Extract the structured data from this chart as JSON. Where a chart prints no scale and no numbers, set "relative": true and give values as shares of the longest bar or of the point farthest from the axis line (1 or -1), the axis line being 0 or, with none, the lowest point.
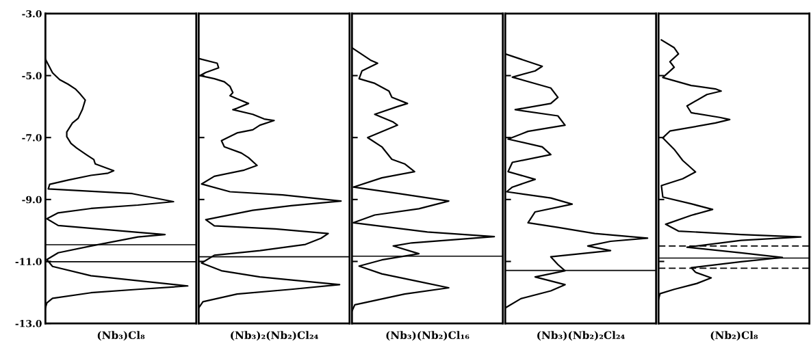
{
  "chart_data": [
    {
      "type": "line",
      "orientation": "horizontal",
      "relative": true,
      "xlabel": "(Nb₃)Cl₈",
      "ylim": [
        -13,
        -3
      ],
      "tick_labels": "y",
      "yticks": [
        {
          "value": -3,
          "label": "-3.0"
        },
        {
          "value": -5,
          "label": "-5.0"
        },
        {
          "value": -7,
          "label": "-7.0"
        },
        {
          "value": -9,
          "label": "-9.0"
        },
        {
          "value": -11,
          "label": "-11.0"
        },
        {
          "value": -13,
          "label": "-13.0"
        }
      ],
      "series": [
        {
          "color": "#000000",
          "values": [
            0,
            0.05,
            0.1,
            0.16,
            0.21,
            0.24,
            0.28,
            0.26,
            0.23,
            0.19,
            0.15,
            0.15,
            0.18,
            0.22,
            0.29,
            0.34,
            0.35,
            0.48,
            0.44,
            0.32,
            0.16,
            0.03,
            0.02,
            0.61,
            0.9,
            0.65,
            0.32,
            0.09,
            0.01,
            0.09,
            0.65,
            0.84,
            0.65,
            0.32,
            0.09,
            0.01,
            0.05,
            0.32,
            1,
            0.65,
            0.32,
            0.05,
            0.01,
            0
          ],
          "x": [
            -4.47,
            -4.91,
            -5.13,
            -5.28,
            -5.43,
            -5.57,
            -5.79,
            -6.09,
            -6.38,
            -6.53,
            -6.82,
            -6.97,
            -7.19,
            -7.34,
            -7.56,
            -7.71,
            -7.85,
            -8.07,
            -8.15,
            -8.22,
            -8.37,
            -8.51,
            -8.66,
            -8.81,
            -9.07,
            -9.18,
            -9.29,
            -9.43,
            -9.62,
            -9.84,
            -10.06,
            -10.13,
            -10.21,
            -10.5,
            -10.72,
            -10.94,
            -11.16,
            -11.46,
            -11.79,
            -11.9,
            -12.01,
            -12.19,
            -12.34,
            -12.5
          ]
        }
      ],
      "ref_lines": [
        {
          "axis": "y",
          "value": -10.46,
          "color": "#000000",
          "line_style": "solid"
        },
        {
          "axis": "y",
          "value": -11.01,
          "color": "#000000",
          "line_style": "solid"
        }
      ]
    },
    {
      "type": "line",
      "orientation": "horizontal",
      "relative": true,
      "xlabel": "(Nb₃)₂(Nb₂)Cl₂₄",
      "ylim": [
        -13,
        -3
      ],
      "tick_labels": false,
      "yticks": [
        {
          "value": -5,
          "label": null
        },
        {
          "value": -7,
          "label": null
        },
        {
          "value": -9,
          "label": null
        },
        {
          "value": -11,
          "label": null
        }
      ],
      "series": [
        {
          "color": "#000000",
          "values": [
            0,
            0.13,
            0.14,
            0.05,
            0.01,
            0.11,
            0.18,
            0.22,
            0.24,
            0.22,
            0.27,
            0.35,
            0.27,
            0.24,
            0.38,
            0.46,
            0.53,
            0.43,
            0.38,
            0.27,
            0.16,
            0.18,
            0.3,
            0.35,
            0.41,
            0.32,
            0.11,
            0.02,
            0.22,
            0.59,
            1,
            0.65,
            0.38,
            0.05,
            0.11,
            0.54,
            0.91,
            0.86,
            0.75,
            0.43,
            0.11,
            0.02,
            0.16,
            0.43,
            0.99,
            0.65,
            0.27,
            0.03,
            0
          ],
          "x": [
            -4.45,
            -4.6,
            -4.75,
            -4.9,
            -5.0,
            -5.1,
            -5.2,
            -5.35,
            -5.55,
            -5.65,
            -5.75,
            -5.9,
            -6.05,
            -6.1,
            -6.25,
            -6.4,
            -6.45,
            -6.6,
            -6.75,
            -6.85,
            -7.1,
            -7.3,
            -7.5,
            -7.65,
            -7.9,
            -8.05,
            -8.25,
            -8.5,
            -8.75,
            -8.85,
            -9.05,
            -9.2,
            -9.35,
            -9.65,
            -9.85,
            -9.95,
            -10.1,
            -10.25,
            -10.45,
            -10.65,
            -10.8,
            -11.05,
            -11.3,
            -11.5,
            -11.75,
            -11.9,
            -12.05,
            -12.3,
            -12.5
          ]
        }
      ],
      "ref_lines": [
        {
          "axis": "y",
          "value": -10.85,
          "color": "#000000",
          "line_style": "solid"
        }
      ]
    },
    {
      "type": "line",
      "orientation": "horizontal",
      "relative": true,
      "xlabel": "(Nb₃)(Nb₂)Cl₁₆",
      "ylim": [
        -13,
        -3
      ],
      "tick_labels": false,
      "yticks": [
        {
          "value": -5,
          "label": null
        },
        {
          "value": -7,
          "label": null
        },
        {
          "value": -9,
          "label": null
        },
        {
          "value": -11,
          "label": null
        }
      ],
      "series": [
        {
          "color": "#000000",
          "values": [
            0,
            0.13,
            0.18,
            0.07,
            0.05,
            0.16,
            0.26,
            0.28,
            0.39,
            0.32,
            0.16,
            0.29,
            0.32,
            0.11,
            0.21,
            0.28,
            0.37,
            0.44,
            0.21,
            0.01,
            0.32,
            0.68,
            0.47,
            0.16,
            0.01,
            0.53,
            1,
            0.42,
            0.29,
            0.47,
            0.21,
            0.05,
            0.21,
            0.47,
            0.68,
            0.37,
            0.02,
            0
          ],
          "x": [
            -4.1,
            -4.5,
            -4.6,
            -4.85,
            -5.1,
            -5.25,
            -5.5,
            -5.7,
            -5.9,
            -6.0,
            -6.25,
            -6.5,
            -6.6,
            -7.0,
            -7.3,
            -7.7,
            -7.85,
            -8.1,
            -8.3,
            -8.6,
            -8.8,
            -9.05,
            -9.3,
            -9.5,
            -9.75,
            -10.05,
            -10.2,
            -10.4,
            -10.5,
            -10.75,
            -10.95,
            -11.15,
            -11.4,
            -11.65,
            -11.85,
            -12.05,
            -12.4,
            -12.6
          ]
        }
      ],
      "ref_lines": [
        {
          "axis": "y",
          "value": -10.83,
          "color": "#000000",
          "line_style": "solid"
        }
      ]
    },
    {
      "type": "line",
      "orientation": "horizontal",
      "relative": true,
      "xlabel": "(Nb₃)(Nb₂)₂Cl₂₄",
      "ylim": [
        -13,
        -3
      ],
      "tick_labels": false,
      "yticks": [
        {
          "value": -5,
          "label": null
        },
        {
          "value": -7,
          "label": null
        },
        {
          "value": -9,
          "label": null
        },
        {
          "value": -11,
          "label": null
        }
      ],
      "series": [
        {
          "color": "#000000",
          "values": [
            0,
            0.26,
            0.21,
            0.05,
            0.32,
            0.37,
            0.32,
            0.07,
            0.37,
            0.42,
            0.16,
            0.02,
            0.26,
            0.32,
            0.05,
            0.02,
            0.21,
            0.05,
            0.01,
            0.32,
            0.47,
            0.21,
            0.16,
            0.37,
            0.63,
            1,
            0.74,
            0.58,
            0.74,
            0.32,
            0.37,
            0.42,
            0.21,
            0.42,
            0.32,
            0.11,
            0
          ],
          "x": [
            -4.3,
            -4.7,
            -4.85,
            -5.05,
            -5.4,
            -5.7,
            -5.9,
            -6.1,
            -6.3,
            -6.6,
            -6.8,
            -7.05,
            -7.3,
            -7.55,
            -7.8,
            -8.1,
            -8.35,
            -8.6,
            -8.75,
            -8.95,
            -9.15,
            -9.4,
            -9.75,
            -9.9,
            -10.1,
            -10.25,
            -10.35,
            -10.5,
            -10.65,
            -10.85,
            -11.1,
            -11.3,
            -11.5,
            -11.75,
            -11.95,
            -12.2,
            -12.5
          ]
        }
      ],
      "ref_lines": [
        {
          "axis": "y",
          "value": -11.29,
          "color": "#000000",
          "line_style": "solid"
        }
      ]
    },
    {
      "type": "line",
      "orientation": "horizontal",
      "relative": true,
      "xlabel": "(Nb₂)Cl₈",
      "ylim": [
        -13,
        -3
      ],
      "tick_labels": false,
      "yticks": [
        {
          "value": -5,
          "label": null
        },
        {
          "value": -7,
          "label": null
        },
        {
          "value": -9,
          "label": null
        },
        {
          "value": -11,
          "label": null
        }
      ],
      "series": [
        {
          "color": "#000000",
          "values": [
            0.02,
            0.11,
            0.14,
            0.08,
            0.11,
            0.03,
            0.23,
            0.4,
            0.44,
            0.34,
            0.2,
            0.23,
            0.43,
            0.5,
            0.4,
            0.08,
            0.03,
            0.11,
            0.17,
            0.26,
            0.17,
            0.02,
            0.03,
            0.23,
            0.38,
            0.23,
            0.05,
            0.14,
            0.58,
            1,
            0.58,
            0.2,
            0.58,
            0.87,
            0.58,
            0.23,
            0.26,
            0.37,
            0.27,
            0.11,
            0.01,
            0
          ],
          "x": [
            -3.85,
            -4.1,
            -4.3,
            -4.55,
            -4.73,
            -5.06,
            -5.32,
            -5.43,
            -5.5,
            -5.61,
            -5.98,
            -6.2,
            -6.35,
            -6.42,
            -6.53,
            -6.79,
            -7.01,
            -7.38,
            -7.74,
            -8.11,
            -8.33,
            -8.55,
            -8.92,
            -9.14,
            -9.32,
            -9.51,
            -9.8,
            -10.02,
            -10.13,
            -10.21,
            -10.32,
            -10.54,
            -10.72,
            -10.87,
            -11.01,
            -11.2,
            -11.35,
            -11.53,
            -11.71,
            -11.9,
            -12.04,
            -12.23
          ]
        }
      ],
      "ref_lines": [
        {
          "axis": "y",
          "value": -10.5,
          "color": "#000000",
          "line_style": "dashed"
        },
        {
          "axis": "y",
          "value": -10.89,
          "color": "#000000",
          "line_style": "solid"
        },
        {
          "axis": "y",
          "value": -11.22,
          "color": "#000000",
          "line_style": "dashed"
        }
      ]
    }
  ]
}
